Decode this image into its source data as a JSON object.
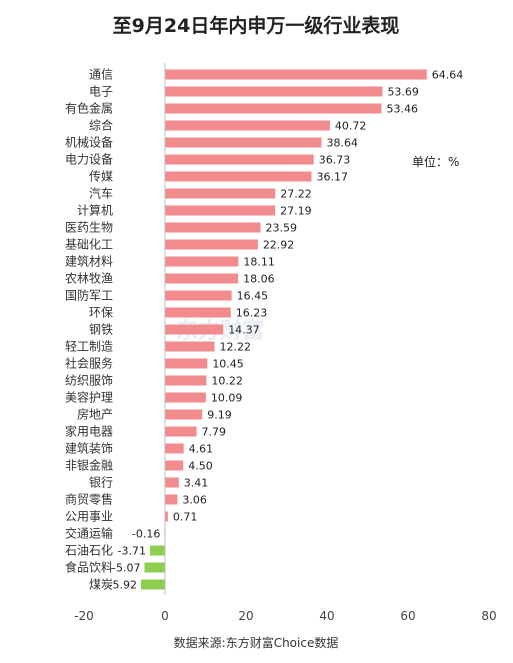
{
  "chart_data": {
    "type": "bar",
    "orientation": "horizontal",
    "title": "至9月24日年内申万一级行业表现",
    "unit_label": "单位：%",
    "source": "数据来源:东方财富Choice数据",
    "watermark": "东方财富",
    "categories": [
      "通信",
      "电子",
      "有色金属",
      "综合",
      "机械设备",
      "电力设备",
      "传媒",
      "汽车",
      "计算机",
      "医药生物",
      "基础化工",
      "建筑材料",
      "农林牧渔",
      "国防军工",
      "环保",
      "钢铁",
      "轻工制造",
      "社会服务",
      "纺织服饰",
      "美容护理",
      "房地产",
      "家用电器",
      "建筑装饰",
      "非银金融",
      "银行",
      "商贸零售",
      "公用事业",
      "交通运输",
      "石油石化",
      "食品饮料",
      "煤炭"
    ],
    "values": [
      64.64,
      53.69,
      53.46,
      40.72,
      38.64,
      36.73,
      36.17,
      27.22,
      27.19,
      23.59,
      22.92,
      18.11,
      18.06,
      16.45,
      16.23,
      14.37,
      12.22,
      10.45,
      10.22,
      10.09,
      9.19,
      7.79,
      4.61,
      4.5,
      3.41,
      3.06,
      0.71,
      -0.16,
      -3.71,
      -5.07,
      -5.92
    ],
    "value_labels": [
      "64.64",
      "53.69",
      "53.46",
      "40.72",
      "38.64",
      "36.73",
      "36.17",
      "27.22",
      "27.19",
      "23.59",
      "22.92",
      "18.11",
      "18.06",
      "16.45",
      "16.23",
      "14.37",
      "12.22",
      "10.45",
      "10.22",
      "10.09",
      "9.19",
      "7.79",
      "4.61",
      "4.50",
      "3.41",
      "3.06",
      "0.71",
      "-0.16",
      "-3.71",
      "-5.07",
      "-5.92"
    ],
    "xlim": [
      -20,
      80
    ],
    "xticks": [
      "-20",
      "0",
      "20",
      "40",
      "60",
      "80"
    ],
    "grid": false,
    "colors": {
      "positive": "#f28b8e",
      "negative": "#8fcf4f",
      "axis": "#bfbfbf"
    }
  }
}
